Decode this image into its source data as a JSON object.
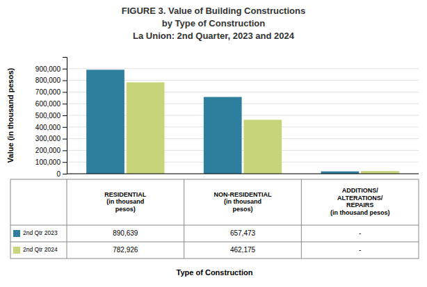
{
  "chart_data": {
    "type": "bar",
    "title": [
      "FIGURE 3. Value of Building Constructions",
      "by Type of Construction",
      "La Union: 2nd Quarter, 2023 and 2024"
    ],
    "categories": [
      "RESIDENTIAL\n(in thousand\npesos)",
      "NON-RESIDENTIAL\n(in thousand\npesos)",
      "ADDITIONS/\nALTERATIONS/\nREPAIRS\n(in thousand pesos)"
    ],
    "series": [
      {
        "name": "2nd Qtr 2023",
        "color": "#2E7E9E",
        "values": [
          890639,
          657473,
          20000
        ],
        "value_labels": [
          "890,639",
          "657,473",
          "-"
        ]
      },
      {
        "name": "2nd Qtr 2024",
        "color": "#C8D47A",
        "values": [
          782926,
          462175,
          23000
        ],
        "value_labels": [
          "782,926",
          "462,175",
          "-"
        ]
      }
    ],
    "ylabel": "Value (in thousand pesos)",
    "xlabel": "Type of Construction",
    "ylim": [
      0,
      1000000
    ],
    "yticks": [
      0,
      {
        "value": 100000,
        "label": "100,000"
      },
      {
        "value": 200000,
        "label": "200,000"
      },
      {
        "value": 300000,
        "label": "300,000"
      },
      {
        "value": 400000,
        "label": "400,000"
      },
      {
        "value": 500000,
        "label": "500,000"
      },
      {
        "value": 600000,
        "label": "600,000"
      },
      {
        "value": 700000,
        "label": "700,000"
      },
      {
        "value": 800000,
        "label": "800,000"
      },
      {
        "value": 900000,
        "label": "900,000"
      }
    ],
    "grid": true
  }
}
